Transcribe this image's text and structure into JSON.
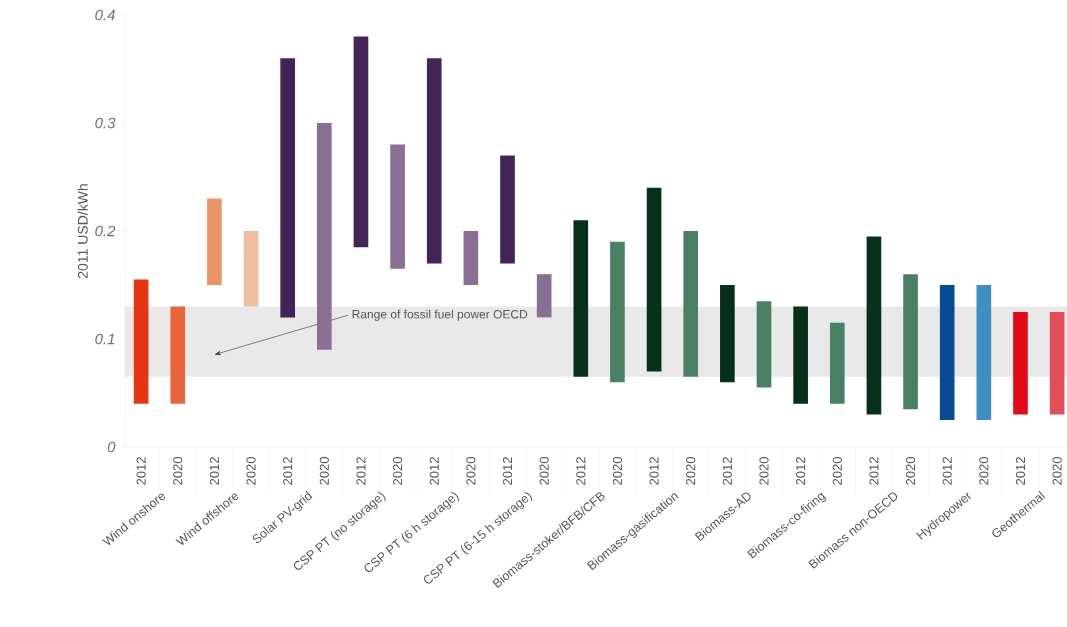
{
  "chart_data": {
    "type": "bar",
    "ylabel": "2011 USD/kWh",
    "categories": [
      "2012",
      "2020",
      "2012",
      "2020",
      "2012",
      "2020",
      "2012",
      "2020",
      "2012",
      "2020",
      "2012",
      "2020",
      "2012",
      "2020",
      "2012",
      "2020",
      "2012",
      "2020",
      "2012",
      "2020",
      "2012",
      "2020",
      "2012",
      "2020",
      "2012",
      "2020"
    ],
    "base": [
      0.04,
      0.04,
      0.15,
      0.13,
      0.12,
      0.09,
      0.185,
      0.165,
      0.17,
      0.15,
      0.17,
      0.12,
      0.065,
      0.06,
      0.07,
      0.065,
      0.06,
      0.055,
      0.04,
      0.04,
      0.03,
      0.035,
      0.025,
      0.025,
      0.03,
      0.03
    ],
    "values": [
      0.115,
      0.09,
      0.08,
      0.07,
      0.24,
      0.21,
      0.195,
      0.115,
      0.19,
      0.05,
      0.1,
      0.04,
      0.145,
      0.13,
      0.17,
      0.135,
      0.09,
      0.08,
      0.09,
      0.075,
      0.165,
      0.125,
      0.125,
      0.125,
      0.095,
      0.095
    ],
    "colors": [
      "#e63312",
      "#e8643a",
      "#eb9566",
      "#efbea0",
      "#432457",
      "#8a6f94",
      "#432457",
      "#8a6f94",
      "#432457",
      "#8a6f94",
      "#432457",
      "#8a6f94",
      "#06301a",
      "#4a8062",
      "#06301a",
      "#4a8062",
      "#06301a",
      "#4a8062",
      "#06301a",
      "#4a8062",
      "#06301a",
      "#4a8062",
      "#074b95",
      "#3f8dc2",
      "#e20a17",
      "#e34d58"
    ],
    "ylim": [
      0,
      0.4
    ],
    "yticks": [
      0,
      0.1,
      0.2,
      0.3,
      0.4
    ],
    "bands": [
      {
        "axis": "y",
        "from": 0.065,
        "to": 0.13,
        "label": "Range of fossil fuel power OECD",
        "color": "#e8e8e8"
      }
    ],
    "annotations": [
      "Wind onshore",
      "Wind offshore",
      "Solar PV-grid",
      "CSP PT (no storage)",
      "CSP PT (6 h storage)",
      "CSP PT (6-15 h storage)",
      "Biomass-stoker/BFB/CFB",
      "Biomass-gasification",
      "Biomass-AD",
      "Biomass-co-firing",
      "Biomass non-OECD",
      "Hydropower",
      "Geothermal"
    ]
  }
}
